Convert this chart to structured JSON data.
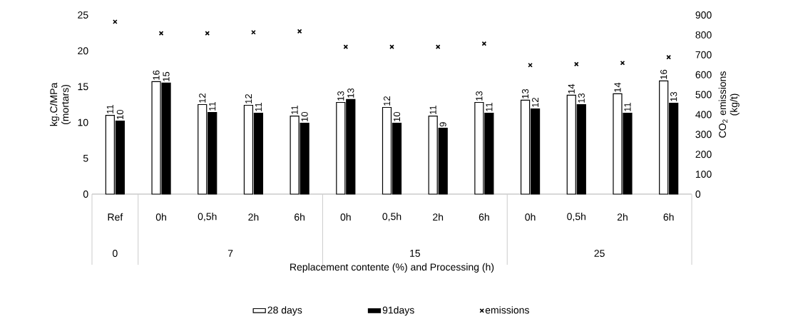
{
  "chart_data": {
    "type": "bar",
    "xlabel": "Replacement contente (%) and Processing (h)",
    "ylabel": "kg.C/MPa (mortars)",
    "y2label": "CO$_{2}$ emissions (kg/t)",
    "categories": [
      "Ref",
      "0h",
      "0,5h",
      "2h",
      "6h",
      "0h",
      "0,5h",
      "2h",
      "6h",
      "0h",
      "0,5h",
      "2h",
      "6h"
    ],
    "annotations": [
      "0",
      "7",
      "15",
      "25"
    ],
    "series": [
      {
        "name": "28 days",
        "color": "#ffffff",
        "values": [
          11.0,
          15.7,
          12.5,
          12.4,
          10.9,
          12.8,
          12.1,
          10.9,
          12.8,
          13.1,
          13.8,
          14.0,
          15.8
        ],
        "value_labels": [
          "11",
          "16",
          "12",
          "12",
          "11",
          "13",
          "12",
          "11",
          "13",
          "13",
          "14",
          "14",
          "16"
        ]
      },
      {
        "name": "91days",
        "color": "#000000",
        "values": [
          10.2,
          15.5,
          11.4,
          11.3,
          9.9,
          13.2,
          9.9,
          9.2,
          11.3,
          11.9,
          12.5,
          11.3,
          12.7
        ],
        "value_labels": [
          "10",
          "15",
          "11",
          "11",
          "10",
          "13",
          "10",
          "9",
          "11",
          "12",
          "13",
          "11",
          "13"
        ]
      },
      {
        "name": "emissions",
        "type": "scatter",
        "axis": "y2",
        "color": "#000000",
        "marker": "cross",
        "values": [
          866,
          808,
          808,
          813,
          818,
          740,
          740,
          740,
          756,
          648,
          653,
          659,
          688
        ]
      }
    ],
    "ylim": [
      0,
      25
    ],
    "yticks": [
      0,
      5,
      10,
      15,
      20,
      25
    ],
    "y2lim": [
      0,
      900
    ],
    "y2ticks": [
      0,
      100,
      200,
      300,
      400,
      500,
      600,
      700,
      800,
      900
    ],
    "legend": "bottom",
    "grid": false
  }
}
